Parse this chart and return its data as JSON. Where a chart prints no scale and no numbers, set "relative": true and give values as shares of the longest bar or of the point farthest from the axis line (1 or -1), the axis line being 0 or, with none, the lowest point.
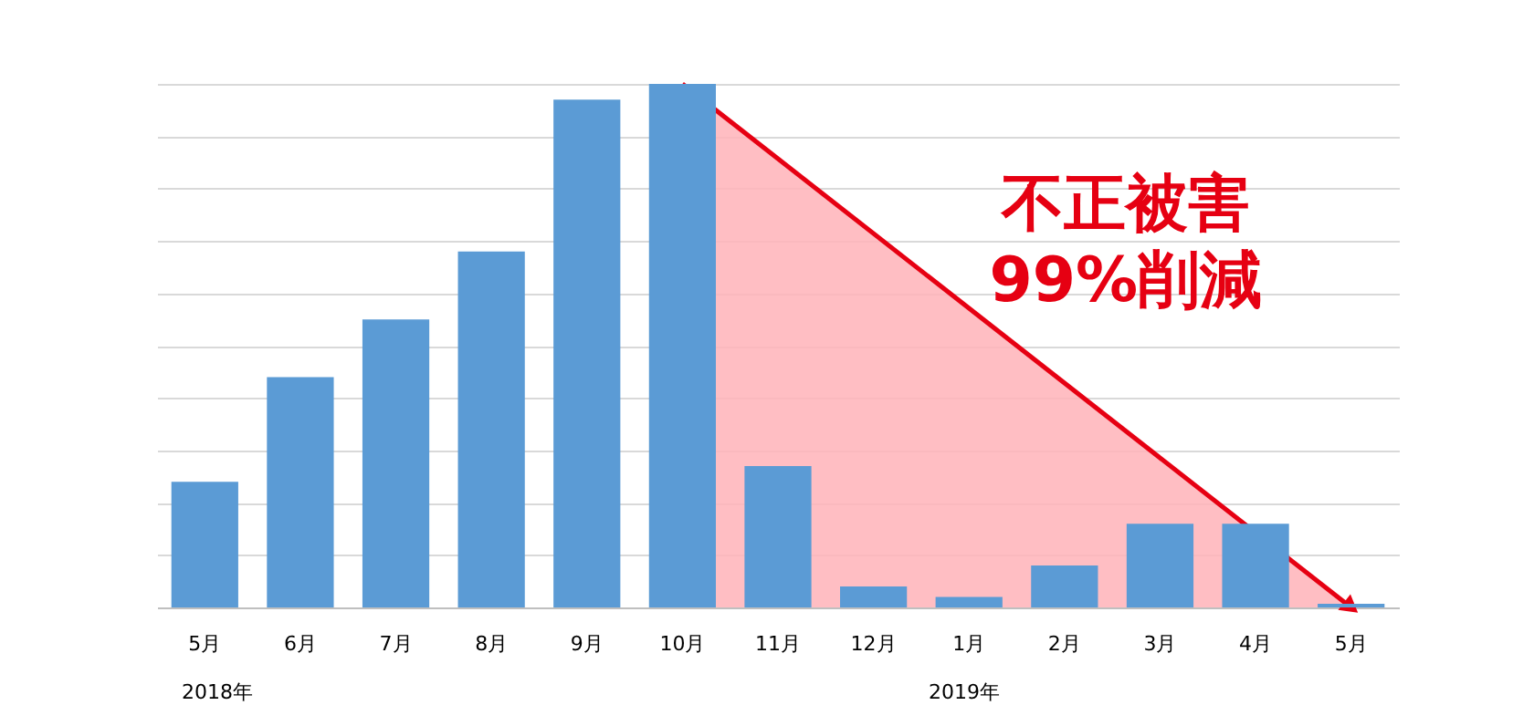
{
  "chart_data": {
    "type": "bar",
    "relative": true,
    "grid": "y",
    "categories": [
      "5月",
      "6月",
      "7月",
      "8月",
      "9月",
      "10月",
      "11月",
      "12月",
      "1月",
      "2月",
      "3月",
      "4月",
      "5月"
    ],
    "values": [
      0.24,
      0.44,
      0.55,
      0.68,
      0.97,
      1,
      0.27,
      0.04,
      0.02,
      0.08,
      0.16,
      0.16,
      0.007
    ],
    "color": "#5b9bd5",
    "annotations": [
      "不正被害\n99%削減",
      "2018年",
      "2019年"
    ]
  }
}
